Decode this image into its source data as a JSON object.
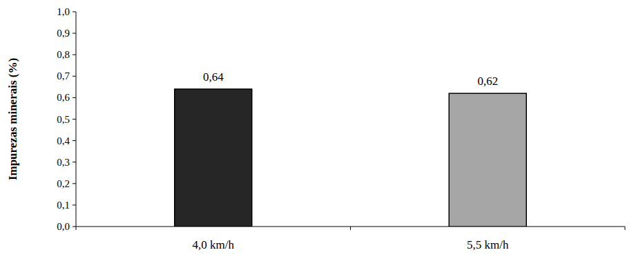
{
  "chart_data": {
    "type": "bar",
    "y_label": "Impurezas minerais (%)",
    "categories": [
      "4,0 km/h",
      "5,5 km/h"
    ],
    "values": [
      0.64,
      0.62
    ],
    "value_labels": [
      "0,64",
      "0,62"
    ],
    "colors": [
      "#262626",
      "#a6a6a6"
    ],
    "ylim": [
      0,
      1.0
    ],
    "yticks": [
      {
        "value": 0,
        "label": "0,0"
      },
      {
        "value": 0.1,
        "label": "0,1"
      },
      {
        "value": 0.2,
        "label": "0,2"
      },
      {
        "value": 0.3,
        "label": "0,3"
      },
      {
        "value": 0.4,
        "label": "0,4"
      },
      {
        "value": 0.5,
        "label": "0,5"
      },
      {
        "value": 0.6,
        "label": "0,6"
      },
      {
        "value": 0.7,
        "label": "0,7"
      },
      {
        "value": 0.8,
        "label": "0,8"
      },
      {
        "value": 0.9,
        "label": "0,9"
      },
      {
        "value": 1.0,
        "label": "1,0"
      }
    ],
    "grid": false,
    "data_labels": true
  }
}
